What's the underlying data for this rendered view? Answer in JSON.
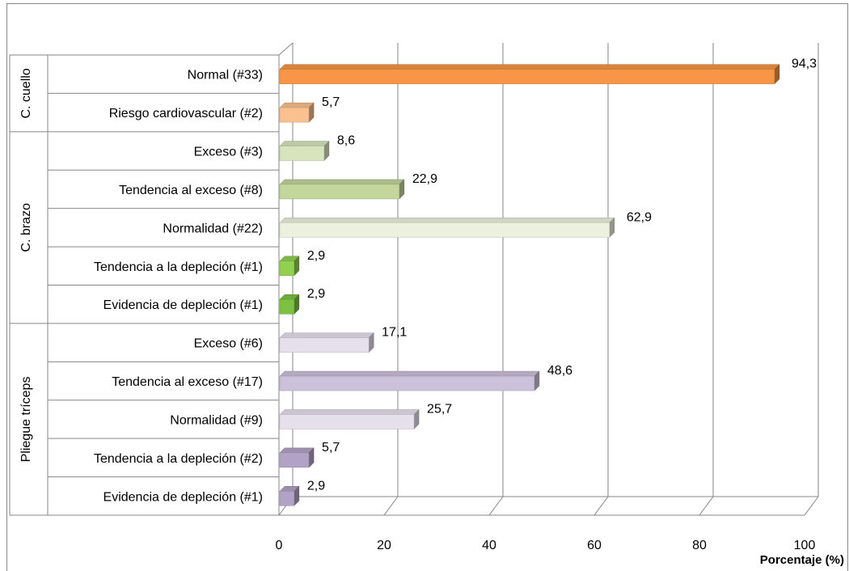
{
  "chart_data": {
    "type": "bar",
    "orientation": "horizontal",
    "title": "",
    "xlabel": "Porcentaje (%)",
    "ylabel": "",
    "xlim": [
      0,
      100
    ],
    "x_ticks": [
      "0",
      "20",
      "40",
      "60",
      "80",
      "100"
    ],
    "grid": "vertical",
    "groups": [
      {
        "label": "C. cuello",
        "categories": [
          {
            "label": "Normal (#33)",
            "value": 94.3,
            "value_label": "94,3",
            "color": "#f79646"
          },
          {
            "label": "Riesgo cardiovascular (#2)",
            "value": 5.7,
            "value_label": "5,7",
            "color": "#fac08f"
          }
        ]
      },
      {
        "label": "C. brazo",
        "categories": [
          {
            "label": "Exceso (#3)",
            "value": 8.6,
            "value_label": "8,6",
            "color": "#d7e4bd"
          },
          {
            "label": "Tendencia al exceso (#8)",
            "value": 22.9,
            "value_label": "22,9",
            "color": "#c3d69b"
          },
          {
            "label": "Normalidad (#22)",
            "value": 62.9,
            "value_label": "62,9",
            "color": "#ebf1de"
          },
          {
            "label": "Tendencia a la depleción (#1)",
            "value": 2.9,
            "value_label": "2,9",
            "color": "#92d050"
          },
          {
            "label": "Evidencia de depleción (#1)",
            "value": 2.9,
            "value_label": "2,9",
            "color": "#7cc142"
          }
        ]
      },
      {
        "label": "Pliegue tríceps",
        "categories": [
          {
            "label": "Exceso (#6)",
            "value": 17.1,
            "value_label": "17,1",
            "color": "#e6e0ec"
          },
          {
            "label": "Tendencia al exceso (#17)",
            "value": 48.6,
            "value_label": "48,6",
            "color": "#ccc1da"
          },
          {
            "label": "Normalidad (#9)",
            "value": 25.7,
            "value_label": "25,7",
            "color": "#e6e0ec"
          },
          {
            "label": "Tendencia a la depleción (#2)",
            "value": 5.7,
            "value_label": "5,7",
            "color": "#b3a2c7"
          },
          {
            "label": "Evidencia de depleción (#1)",
            "value": 2.9,
            "value_label": "2,9",
            "color": "#b3a2c7"
          }
        ]
      }
    ]
  }
}
